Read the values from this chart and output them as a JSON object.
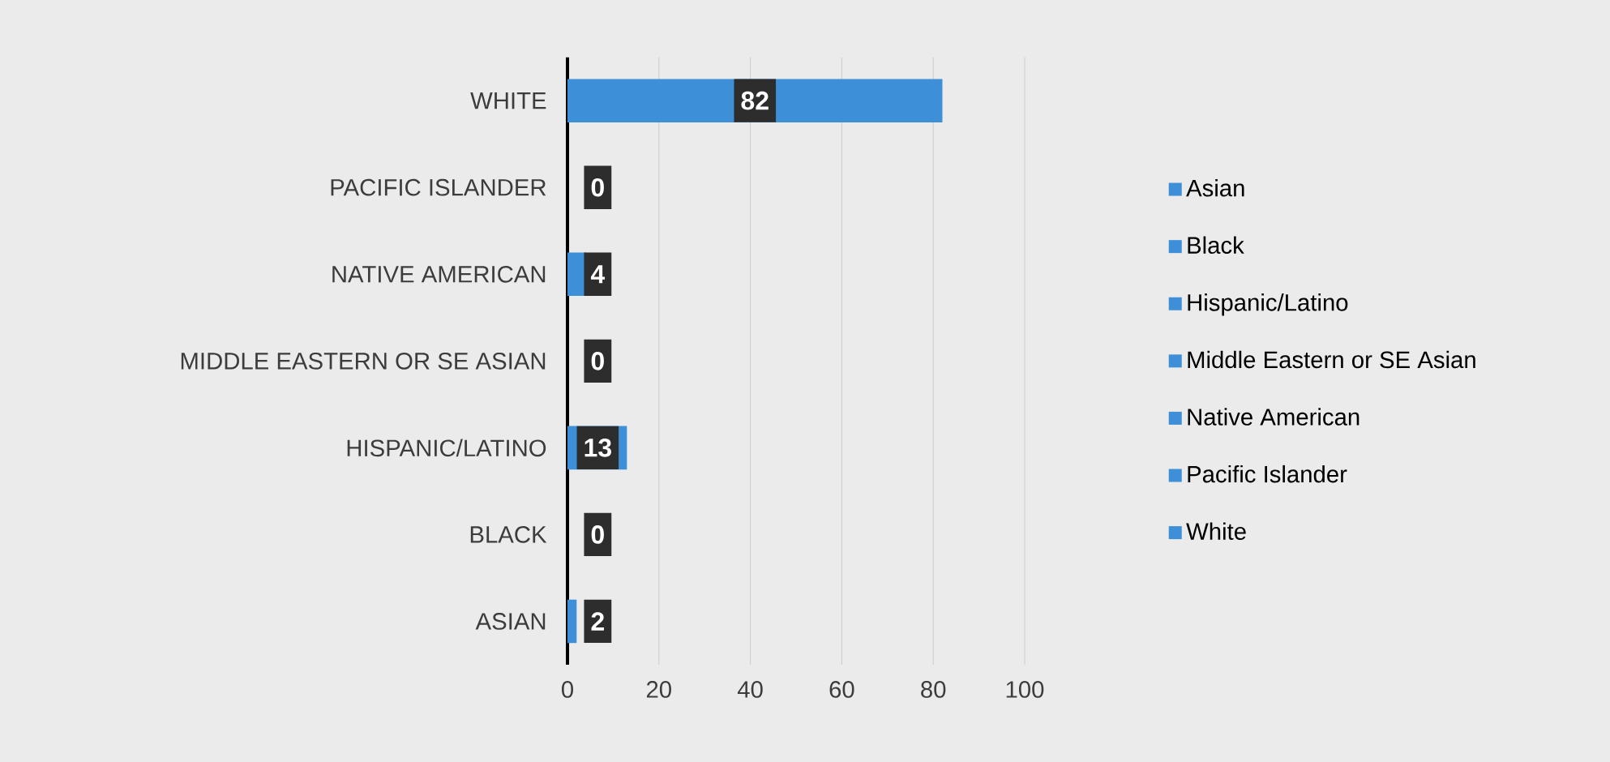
{
  "chart_data": {
    "type": "bar",
    "orientation": "horizontal",
    "stacked": true,
    "data_labels": true,
    "grid": "x",
    "legend": "right",
    "categories": [
      "WHITE",
      "PACIFIC ISLANDER",
      "NATIVE AMERICAN",
      "MIDDLE EASTERN OR SE ASIAN",
      "HISPANIC/LATINO",
      "BLACK",
      "ASIAN"
    ],
    "xlim": [
      0,
      100
    ],
    "xticks": [
      0,
      20,
      40,
      60,
      80,
      100
    ],
    "series": [
      {
        "name": "Asian",
        "color": "#3d8fd8",
        "values": [
          null,
          null,
          null,
          null,
          null,
          null,
          2
        ]
      },
      {
        "name": "Black",
        "color": "#3d8fd8",
        "values": [
          null,
          null,
          null,
          null,
          null,
          0,
          null
        ]
      },
      {
        "name": "Hispanic/Latino",
        "color": "#3d8fd8",
        "values": [
          null,
          null,
          null,
          null,
          13,
          null,
          null
        ]
      },
      {
        "name": "Middle Eastern or SE Asian",
        "color": "#3d8fd8",
        "values": [
          null,
          null,
          null,
          0,
          null,
          null,
          null
        ]
      },
      {
        "name": "Native American",
        "color": "#3d8fd8",
        "values": [
          null,
          null,
          4,
          null,
          null,
          null,
          null
        ]
      },
      {
        "name": "Pacific Islander",
        "color": "#3d8fd8",
        "values": [
          null,
          0,
          null,
          null,
          null,
          null,
          null
        ]
      },
      {
        "name": "White",
        "color": "#3d8fd8",
        "values": [
          82,
          null,
          null,
          null,
          null,
          null,
          null
        ]
      }
    ]
  }
}
